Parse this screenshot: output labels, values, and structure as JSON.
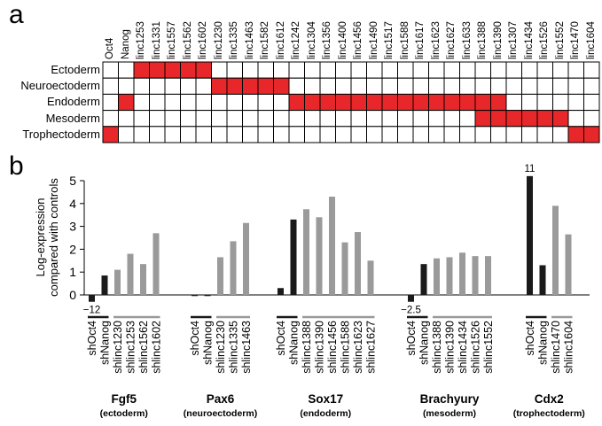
{
  "panel_labels": {
    "a": "a",
    "b": "b"
  },
  "heatmap": {
    "columns": [
      "Oct4",
      "Nanog",
      "linc1253",
      "linc1331",
      "linc1557",
      "linc1562",
      "linc1602",
      "linc1230",
      "linc1335",
      "linc1463",
      "linc1582",
      "linc1612",
      "linc1242",
      "linc1304",
      "linc1356",
      "linc1400",
      "linc1456",
      "linc1490",
      "linc1517",
      "linc1588",
      "linc1617",
      "linc1623",
      "linc1627",
      "linc1633",
      "linc1388",
      "linc1390",
      "linc1307",
      "linc1434",
      "linc1526",
      "linc1552",
      "linc1470",
      "linc1604"
    ],
    "rows": [
      "Ectoderm",
      "Neuroectoderm",
      "Endoderm",
      "Mesoderm",
      "Trophectoderm"
    ],
    "filled": [
      [
        0,
        0,
        1,
        1,
        1,
        1,
        1,
        0,
        0,
        0,
        0,
        0,
        0,
        0,
        0,
        0,
        0,
        0,
        0,
        0,
        0,
        0,
        0,
        0,
        0,
        0,
        0,
        0,
        0,
        0,
        0,
        0
      ],
      [
        0,
        0,
        0,
        0,
        0,
        0,
        0,
        1,
        1,
        1,
        1,
        1,
        0,
        0,
        0,
        0,
        0,
        0,
        0,
        0,
        0,
        0,
        0,
        0,
        0,
        0,
        0,
        0,
        0,
        0,
        0,
        0
      ],
      [
        0,
        1,
        0,
        0,
        0,
        0,
        0,
        0,
        0,
        0,
        0,
        0,
        1,
        1,
        1,
        1,
        1,
        1,
        1,
        1,
        1,
        1,
        1,
        1,
        1,
        1,
        0,
        0,
        0,
        0,
        0,
        0
      ],
      [
        0,
        0,
        0,
        0,
        0,
        0,
        0,
        0,
        0,
        0,
        0,
        0,
        0,
        0,
        0,
        0,
        0,
        0,
        0,
        0,
        0,
        0,
        0,
        0,
        1,
        1,
        1,
        1,
        1,
        1,
        0,
        0
      ],
      [
        1,
        0,
        0,
        0,
        0,
        0,
        0,
        0,
        0,
        0,
        0,
        0,
        0,
        0,
        0,
        0,
        0,
        0,
        0,
        0,
        0,
        0,
        0,
        0,
        0,
        0,
        0,
        0,
        0,
        0,
        1,
        1
      ]
    ],
    "fill_color": "#e8272a"
  },
  "chart_data": {
    "type": "bar",
    "ylabel": "Log-expression\ncompared with controls",
    "ylim": [
      0,
      5
    ],
    "yticks": [
      0,
      1,
      2,
      3,
      4,
      5
    ],
    "colors": {
      "control": "#1a1a1a",
      "linc": "#9a9a9a"
    },
    "groups": [
      {
        "gene": "Fgf5",
        "lineage": "(ectoderm)",
        "bars": [
          {
            "label": "shOct4",
            "value": -0.3,
            "kind": "control",
            "annotation": "−12"
          },
          {
            "label": "shNanog",
            "value": 0.85,
            "kind": "control"
          },
          {
            "label": "shlinc1230",
            "value": 1.1,
            "kind": "linc"
          },
          {
            "label": "shlinc1253",
            "value": 1.8,
            "kind": "linc"
          },
          {
            "label": "shlinc1562",
            "value": 1.35,
            "kind": "linc"
          },
          {
            "label": "shlinc1602",
            "value": 2.7,
            "kind": "linc"
          }
        ]
      },
      {
        "gene": "Pax6",
        "lineage": "(neuroectoderm)",
        "bars": [
          {
            "label": "shOct4",
            "value": -0.05,
            "kind": "control"
          },
          {
            "label": "shNanog",
            "value": -0.05,
            "kind": "control"
          },
          {
            "label": "shlinc1230",
            "value": 1.65,
            "kind": "linc"
          },
          {
            "label": "shlinc1335",
            "value": 2.35,
            "kind": "linc"
          },
          {
            "label": "shlinc1463",
            "value": 3.15,
            "kind": "linc"
          }
        ]
      },
      {
        "gene": "Sox17",
        "lineage": "(endoderm)",
        "bars": [
          {
            "label": "shOct4",
            "value": 0.3,
            "kind": "control"
          },
          {
            "label": "shNanog",
            "value": 3.3,
            "kind": "control"
          },
          {
            "label": "shlinc1388",
            "value": 3.75,
            "kind": "linc"
          },
          {
            "label": "shlinc1390",
            "value": 3.4,
            "kind": "linc"
          },
          {
            "label": "shlinc1456",
            "value": 4.3,
            "kind": "linc"
          },
          {
            "label": "shlinc1588",
            "value": 2.3,
            "kind": "linc"
          },
          {
            "label": "shlinc1623",
            "value": 2.75,
            "kind": "linc"
          },
          {
            "label": "shlinc1627",
            "value": 1.5,
            "kind": "linc"
          }
        ]
      },
      {
        "gene": "Brachyury",
        "lineage": "(mesoderm)",
        "bars": [
          {
            "label": "shOct4",
            "value": -0.3,
            "kind": "control",
            "annotation": "−2.5"
          },
          {
            "label": "shNanog",
            "value": 1.35,
            "kind": "control"
          },
          {
            "label": "shlinc1388",
            "value": 1.6,
            "kind": "linc"
          },
          {
            "label": "shlinc1390",
            "value": 1.65,
            "kind": "linc"
          },
          {
            "label": "shlinc1434",
            "value": 1.85,
            "kind": "linc"
          },
          {
            "label": "shlinc1526",
            "value": 1.7,
            "kind": "linc"
          },
          {
            "label": "shlinc1552",
            "value": 1.7,
            "kind": "linc"
          }
        ]
      },
      {
        "gene": "Cdx2",
        "lineage": "(trophectoderm)",
        "bars": [
          {
            "label": "shOct4",
            "value": 5.2,
            "kind": "control",
            "annotation": "11"
          },
          {
            "label": "shNanog",
            "value": 1.3,
            "kind": "control"
          },
          {
            "label": "shlinc1470",
            "value": 3.9,
            "kind": "linc"
          },
          {
            "label": "shlinc1604",
            "value": 2.65,
            "kind": "linc"
          }
        ]
      }
    ]
  }
}
